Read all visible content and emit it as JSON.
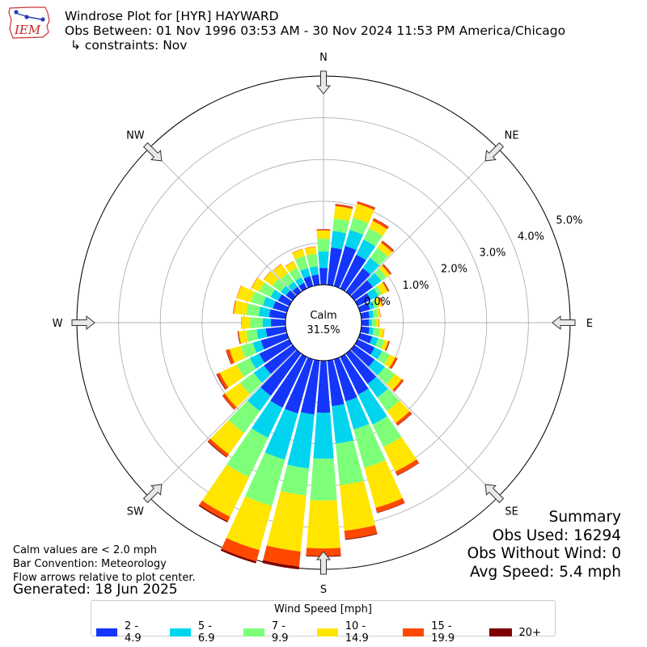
{
  "header": {
    "title": "Windrose Plot for [HYR] HAYWARD",
    "obs_between": "Obs Between: 01 Nov 1996 03:53 AM - 30 Nov 2024 11:53 PM America/Chicago",
    "constraints": "↳ constraints: Nov"
  },
  "logo": {
    "text": "IEM"
  },
  "notes": {
    "calm_def": "Calm values are < 2.0 mph",
    "bar_convention": "Bar Convention: Meteorology",
    "flow_arrows": "Flow arrows relative to plot center.",
    "generated": "Generated: 18 Jun 2025"
  },
  "summary": {
    "title": "Summary",
    "obs_used": "Obs Used: 16294",
    "obs_without_wind": "Obs Without Wind: 0",
    "avg_speed": "Avg Speed: 5.4 mph"
  },
  "legend": {
    "title": "Wind Speed [mph]",
    "items": [
      "2 - 4.9",
      "5 - 6.9",
      "7 - 9.9",
      "10 - 14.9",
      "15 - 19.9",
      "20+"
    ]
  },
  "colors": {
    "bins": [
      "#1436fa",
      "#00d4ee",
      "#7dff7a",
      "#ffe500",
      "#ff4800",
      "#800000"
    ],
    "grid": "#b0b0b0",
    "arrow_fill": "#e8e8e8",
    "arrow_stroke": "#333333"
  },
  "chart_data": {
    "type": "windrose",
    "calm_label": "Calm",
    "calm_value": "31.5%",
    "directions": [
      "N",
      "NE",
      "E",
      "SE",
      "S",
      "SW",
      "W",
      "NW"
    ],
    "radial_ticks": [
      "0.0%",
      "1.0%",
      "2.0%",
      "3.0%",
      "4.0%",
      "5.0%"
    ],
    "radial_max_percent": 5.0,
    "sector_count": 36,
    "sector_labels_deg": [
      0,
      10,
      20,
      30,
      40,
      50,
      60,
      70,
      80,
      90,
      100,
      110,
      120,
      130,
      140,
      150,
      160,
      170,
      180,
      190,
      200,
      210,
      220,
      230,
      240,
      250,
      260,
      270,
      280,
      290,
      300,
      310,
      320,
      330,
      340,
      350
    ],
    "speed_bins": [
      "2 - 4.9",
      "5 - 6.9",
      "7 - 9.9",
      "10 - 14.9",
      "15 - 19.9",
      "20+"
    ],
    "cumulative_percent": [
      [
        0.4,
        0.8,
        1.1,
        1.3,
        1.32,
        1.33
      ],
      [
        0.9,
        1.3,
        1.6,
        1.9,
        1.94,
        1.95
      ],
      [
        1.0,
        1.4,
        1.7,
        2.05,
        2.1,
        2.11
      ],
      [
        0.9,
        1.3,
        1.6,
        1.8,
        1.86,
        1.87
      ],
      [
        0.7,
        1.0,
        1.3,
        1.45,
        1.5,
        1.51
      ],
      [
        0.55,
        0.8,
        0.95,
        1.05,
        1.09,
        1.1
      ],
      [
        0.35,
        0.55,
        0.65,
        0.8,
        0.83,
        0.84
      ],
      [
        0.25,
        0.35,
        0.45,
        0.55,
        0.57,
        0.58
      ],
      [
        0.2,
        0.3,
        0.4,
        0.46,
        0.47,
        0.47
      ],
      [
        0.18,
        0.25,
        0.35,
        0.42,
        0.43,
        0.43
      ],
      [
        0.2,
        0.3,
        0.45,
        0.55,
        0.56,
        0.56
      ],
      [
        0.3,
        0.45,
        0.6,
        0.7,
        0.73,
        0.74
      ],
      [
        0.45,
        0.65,
        0.85,
        1.0,
        1.05,
        1.06
      ],
      [
        0.6,
        0.9,
        1.2,
        1.4,
        1.45,
        1.46
      ],
      [
        0.9,
        1.3,
        1.7,
        2.05,
        2.12,
        2.13
      ],
      [
        1.0,
        1.8,
        2.4,
        3.05,
        3.15,
        3.16
      ],
      [
        1.05,
        1.75,
        2.7,
        3.7,
        3.82,
        3.83
      ],
      [
        1.1,
        2.0,
        3.0,
        4.1,
        4.3,
        4.32
      ],
      [
        1.25,
        2.35,
        3.35,
        4.5,
        4.68,
        4.7
      ],
      [
        1.3,
        2.6,
        3.25,
        4.6,
        4.96,
        5.03
      ],
      [
        1.35,
        2.5,
        3.65,
        4.75,
        5.03,
        5.08
      ],
      [
        1.35,
        2.15,
        3.2,
        4.25,
        4.37,
        4.4
      ],
      [
        1.25,
        1.7,
        2.35,
        2.97,
        3.05,
        3.07
      ],
      [
        0.85,
        1.15,
        1.55,
        2.0,
        2.07,
        2.08
      ],
      [
        0.8,
        1.05,
        1.4,
        1.85,
        1.92,
        1.94
      ],
      [
        0.65,
        0.85,
        1.15,
        1.43,
        1.51,
        1.52
      ],
      [
        0.48,
        0.7,
        0.95,
        1.13,
        1.15,
        1.16
      ],
      [
        0.35,
        0.55,
        0.85,
        1.05,
        1.06,
        1.06
      ],
      [
        0.4,
        0.65,
        0.95,
        1.25,
        1.27,
        1.27
      ],
      [
        0.35,
        0.6,
        0.9,
        1.25,
        1.26,
        1.26
      ],
      [
        0.3,
        0.5,
        0.8,
        1.0,
        1.01,
        1.01
      ],
      [
        0.2,
        0.35,
        0.6,
        0.85,
        0.86,
        0.86
      ],
      [
        0.15,
        0.3,
        0.55,
        0.82,
        0.83,
        0.83
      ],
      [
        0.15,
        0.3,
        0.55,
        0.72,
        0.73,
        0.73
      ],
      [
        0.25,
        0.45,
        0.75,
        0.92,
        0.93,
        0.93
      ],
      [
        0.25,
        0.45,
        0.75,
        0.92,
        0.93,
        0.93
      ]
    ]
  }
}
